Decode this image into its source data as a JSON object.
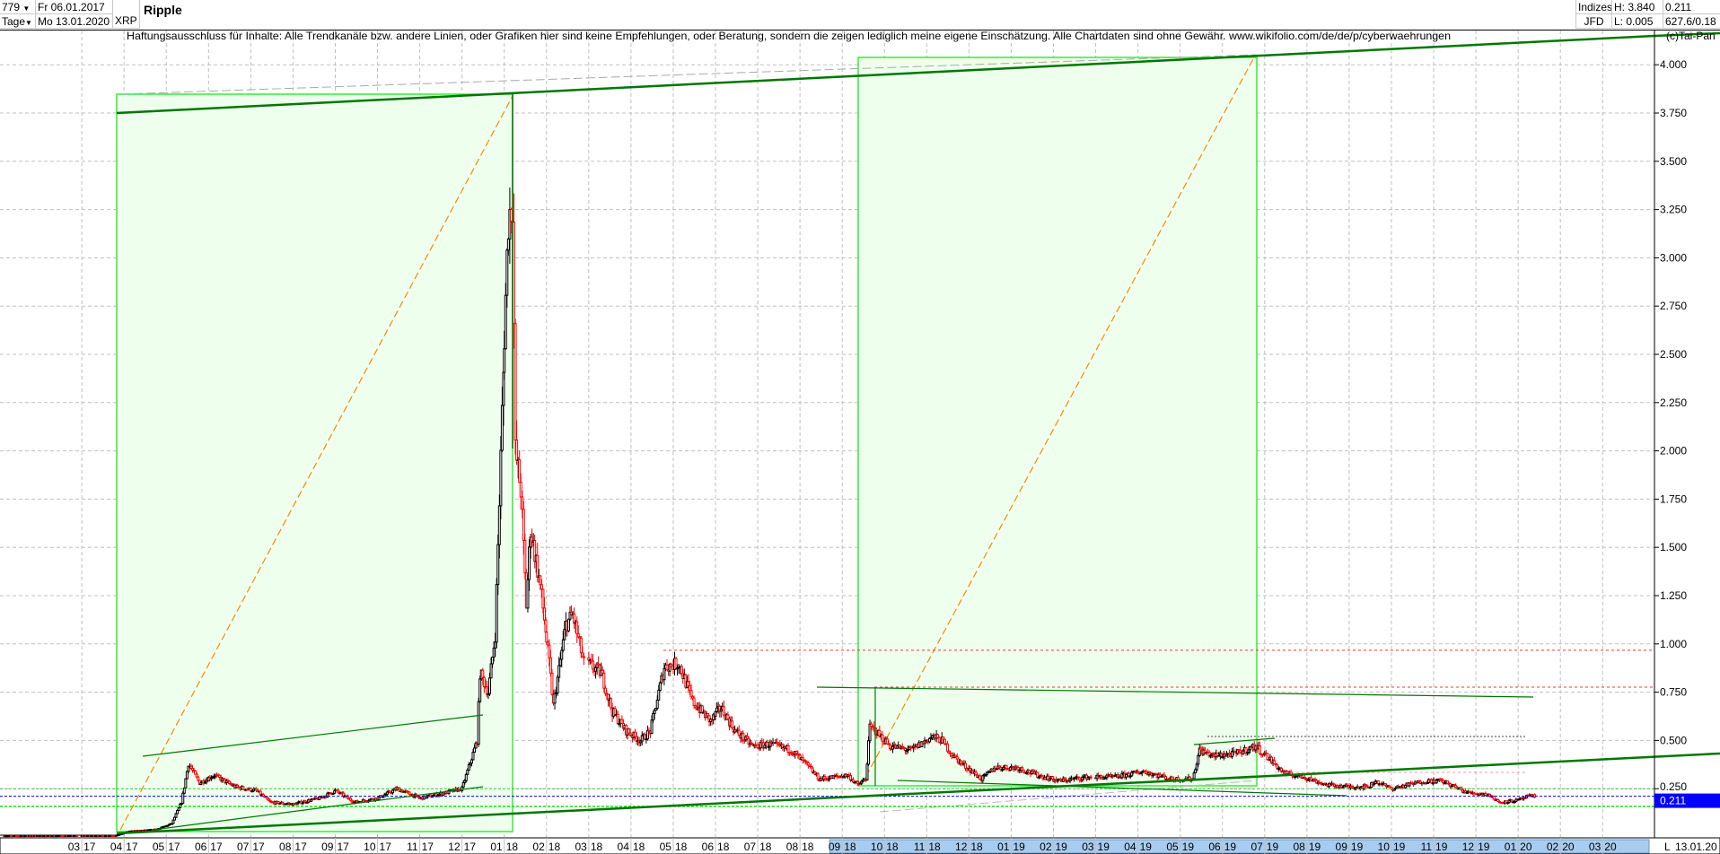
{
  "header": {
    "period_count": "779",
    "interval": "Tage",
    "date_from": "Fr 06.01.2017",
    "date_to": "Mo 13.01.2020",
    "symbol": "XRP",
    "title": "Ripple",
    "index_label": "Indizes",
    "source": "JFD",
    "high": "H: 3.840",
    "low": "L: 0.005",
    "last": "0.211",
    "extra": "627.6/0.18",
    "copyright": "(c)Tai-Pan"
  },
  "disclaimer": "Haftungsausschluss für Inhalte: Alle Trendkanäle bzw. andere Linien, oder Grafiken hier sind keine Empfehlungen, oder Beratung, sondern die zeigen lediglich meine eigene Einschätzung. Alle Chartdaten sind ohne Gewähr.  www.wikifolio.com/de/de/p/cyberwaehrungen",
  "footer": {
    "scale_mode": "L",
    "last_date": "13.01.20"
  },
  "colors": {
    "up": "#000000",
    "down": "#ff0000",
    "box_fill": "#eeffee",
    "box_border": "#33ee33",
    "trend": "#007700",
    "fib": "#ff8800",
    "current_price": "#0000ff"
  },
  "chart_data": {
    "type": "candlestick",
    "ylim": [
      0,
      4.1
    ],
    "grid": true,
    "y_ticks": [
      "4.000",
      "3.750",
      "3.500",
      "3.250",
      "3.000",
      "2.750",
      "2.500",
      "2.250",
      "2.000",
      "1.750",
      "1.500",
      "1.250",
      "1.000",
      "0.750",
      "0.500",
      "0.250"
    ],
    "x_ticks": [
      "03 17",
      "04 17",
      "05 17",
      "06 17",
      "07 17",
      "08 17",
      "09 17",
      "10 17",
      "11 17",
      "12 17",
      "01 18",
      "02 18",
      "03 18",
      "04 18",
      "05 18",
      "06 18",
      "07 18",
      "08 18",
      "09 18",
      "10 18",
      "11 18",
      "12 18",
      "01 19",
      "02 19",
      "03 19",
      "04 19",
      "05 19",
      "06 19",
      "07 19",
      "08 19",
      "09 19",
      "10 19",
      "11 19",
      "12 19",
      "01 20",
      "02 20",
      "03 20"
    ],
    "current_price": "0.211",
    "reference_levels": [
      0.967,
      0.776,
      0.25,
      0.211,
      0.158
    ],
    "close_keypoints": [
      [
        "2017-01-06",
        0.0065
      ],
      [
        "2017-03-25",
        0.007
      ],
      [
        "2017-04-05",
        0.03
      ],
      [
        "2017-04-25",
        0.04
      ],
      [
        "2017-05-05",
        0.07
      ],
      [
        "2017-05-12",
        0.18
      ],
      [
        "2017-05-17",
        0.38
      ],
      [
        "2017-05-25",
        0.28
      ],
      [
        "2017-06-05",
        0.32
      ],
      [
        "2017-06-20",
        0.26
      ],
      [
        "2017-07-05",
        0.24
      ],
      [
        "2017-07-15",
        0.18
      ],
      [
        "2017-08-01",
        0.17
      ],
      [
        "2017-08-20",
        0.2
      ],
      [
        "2017-09-01",
        0.24
      ],
      [
        "2017-09-15",
        0.18
      ],
      [
        "2017-10-01",
        0.2
      ],
      [
        "2017-10-15",
        0.25
      ],
      [
        "2017-11-01",
        0.2
      ],
      [
        "2017-11-20",
        0.23
      ],
      [
        "2017-12-01",
        0.25
      ],
      [
        "2017-12-12",
        0.5
      ],
      [
        "2017-12-14",
        0.85
      ],
      [
        "2017-12-20",
        0.75
      ],
      [
        "2017-12-25",
        1.05
      ],
      [
        "2017-12-30",
        2.2
      ],
      [
        "2018-01-04",
        3.2
      ],
      [
        "2018-01-07",
        3.3
      ],
      [
        "2018-01-09",
        2.0
      ],
      [
        "2018-01-13",
        1.8
      ],
      [
        "2018-01-17",
        1.2
      ],
      [
        "2018-01-20",
        1.6
      ],
      [
        "2018-01-27",
        1.3
      ],
      [
        "2018-02-03",
        0.9
      ],
      [
        "2018-02-06",
        0.68
      ],
      [
        "2018-02-15",
        1.1
      ],
      [
        "2018-02-20",
        1.15
      ],
      [
        "2018-02-28",
        0.9
      ],
      [
        "2018-03-10",
        0.85
      ],
      [
        "2018-03-18",
        0.65
      ],
      [
        "2018-03-28",
        0.55
      ],
      [
        "2018-04-08",
        0.5
      ],
      [
        "2018-04-15",
        0.55
      ],
      [
        "2018-04-25",
        0.88
      ],
      [
        "2018-05-05",
        0.9
      ],
      [
        "2018-05-15",
        0.7
      ],
      [
        "2018-05-28",
        0.6
      ],
      [
        "2018-06-05",
        0.67
      ],
      [
        "2018-06-15",
        0.55
      ],
      [
        "2018-06-28",
        0.47
      ],
      [
        "2018-07-10",
        0.48
      ],
      [
        "2018-07-25",
        0.45
      ],
      [
        "2018-08-05",
        0.38
      ],
      [
        "2018-08-15",
        0.3
      ],
      [
        "2018-09-05",
        0.32
      ],
      [
        "2018-09-12",
        0.27
      ],
      [
        "2018-09-18",
        0.3
      ],
      [
        "2018-09-21",
        0.57
      ],
      [
        "2018-09-25",
        0.55
      ],
      [
        "2018-10-05",
        0.47
      ],
      [
        "2018-10-20",
        0.45
      ],
      [
        "2018-11-05",
        0.52
      ],
      [
        "2018-11-12",
        0.5
      ],
      [
        "2018-11-20",
        0.42
      ],
      [
        "2018-11-28",
        0.37
      ],
      [
        "2018-12-10",
        0.3
      ],
      [
        "2018-12-20",
        0.36
      ],
      [
        "2019-01-05",
        0.36
      ],
      [
        "2019-01-20",
        0.32
      ],
      [
        "2019-02-05",
        0.29
      ],
      [
        "2019-02-25",
        0.31
      ],
      [
        "2019-03-15",
        0.31
      ],
      [
        "2019-04-05",
        0.34
      ],
      [
        "2019-04-25",
        0.3
      ],
      [
        "2019-05-10",
        0.3
      ],
      [
        "2019-05-15",
        0.45
      ],
      [
        "2019-05-25",
        0.42
      ],
      [
        "2019-06-10",
        0.43
      ],
      [
        "2019-06-25",
        0.47
      ],
      [
        "2019-07-05",
        0.4
      ],
      [
        "2019-07-15",
        0.33
      ],
      [
        "2019-07-30",
        0.31
      ],
      [
        "2019-08-15",
        0.27
      ],
      [
        "2019-08-30",
        0.26
      ],
      [
        "2019-09-15",
        0.26
      ],
      [
        "2019-09-20",
        0.29
      ],
      [
        "2019-10-01",
        0.25
      ],
      [
        "2019-10-25",
        0.29
      ],
      [
        "2019-11-07",
        0.29
      ],
      [
        "2019-11-25",
        0.23
      ],
      [
        "2019-12-10",
        0.22
      ],
      [
        "2019-12-18",
        0.18
      ],
      [
        "2020-01-01",
        0.19
      ],
      [
        "2020-01-08",
        0.21
      ],
      [
        "2020-01-13",
        0.211
      ]
    ]
  }
}
